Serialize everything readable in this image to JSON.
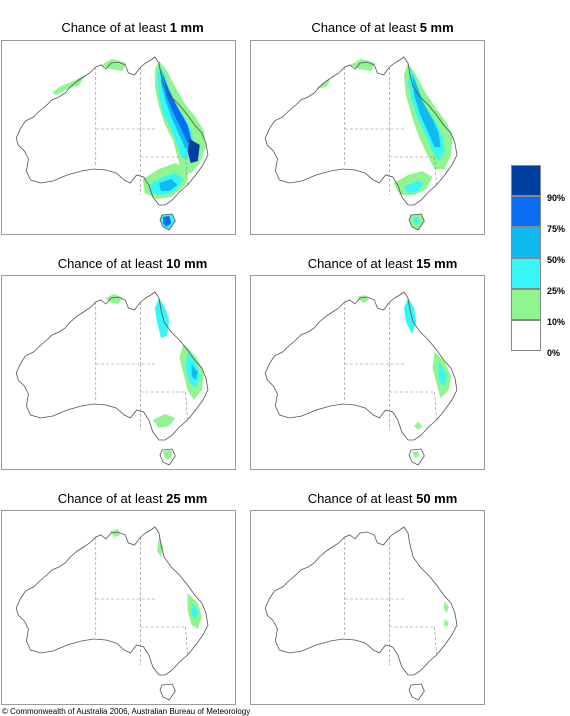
{
  "panels": [
    {
      "title_prefix": "Chance of at least ",
      "threshold": "1 mm",
      "level": 0
    },
    {
      "title_prefix": "Chance of at least ",
      "threshold": "5 mm",
      "level": 1
    },
    {
      "title_prefix": "Chance of at least ",
      "threshold": "10 mm",
      "level": 2
    },
    {
      "title_prefix": "Chance of at least ",
      "threshold": "15 mm",
      "level": 3
    },
    {
      "title_prefix": "Chance of at least ",
      "threshold": "25 mm",
      "level": 4
    },
    {
      "title_prefix": "Chance of at least ",
      "threshold": "50 mm",
      "level": 5
    }
  ],
  "legend": {
    "colors": [
      "#003f9f",
      "#0a6cf0",
      "#10b9f0",
      "#36f6f6",
      "#90f590",
      "#ffffff"
    ],
    "labels": [
      "90%",
      "75%",
      "50%",
      "25%",
      "10%",
      "0%"
    ]
  },
  "copyright": "© Commonwealth of Australia 2006, Australian Bureau of Meteorology"
}
